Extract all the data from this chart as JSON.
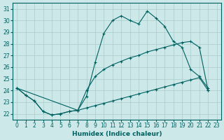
{
  "xlabel": "Humidex (Indice chaleur)",
  "bg_color": "#cce8e8",
  "line_color": "#006060",
  "grid_color": "#aacccc",
  "xlim": [
    -0.5,
    23.5
  ],
  "ylim": [
    21.5,
    31.5
  ],
  "yticks": [
    22,
    23,
    24,
    25,
    26,
    27,
    28,
    29,
    30,
    31
  ],
  "xticks": [
    0,
    1,
    2,
    3,
    4,
    5,
    6,
    7,
    8,
    9,
    10,
    11,
    12,
    13,
    14,
    15,
    16,
    17,
    18,
    19,
    20,
    21,
    22,
    23
  ],
  "curve_top_x": [
    0,
    1,
    2,
    3,
    4,
    5,
    6,
    7,
    8,
    9,
    10,
    11,
    12,
    13,
    14,
    15,
    16,
    17,
    18,
    19,
    20,
    21,
    22
  ],
  "curve_top_y": [
    24.2,
    23.6,
    23.1,
    22.2,
    21.9,
    22.0,
    22.2,
    22.3,
    23.5,
    26.4,
    28.9,
    30.0,
    30.4,
    30.0,
    29.7,
    30.8,
    30.2,
    29.5,
    28.2,
    27.7,
    25.8,
    25.2,
    24.2
  ],
  "curve_mid_x": [
    0,
    7,
    8,
    9,
    10,
    11,
    12,
    13,
    14,
    15,
    16,
    17,
    18,
    19,
    20,
    21,
    22
  ],
  "curve_mid_y": [
    24.2,
    22.3,
    24.0,
    25.2,
    25.8,
    26.2,
    26.5,
    26.8,
    27.0,
    27.3,
    27.5,
    27.7,
    27.9,
    28.1,
    28.2,
    27.7,
    24.0
  ],
  "curve_bot_x": [
    0,
    1,
    2,
    3,
    4,
    5,
    6,
    7,
    8,
    9,
    10,
    11,
    12,
    13,
    14,
    15,
    16,
    17,
    18,
    19,
    20,
    21,
    22
  ],
  "curve_bot_y": [
    24.2,
    23.6,
    23.1,
    22.2,
    21.9,
    22.0,
    22.2,
    22.3,
    22.5,
    22.7,
    22.9,
    23.1,
    23.3,
    23.5,
    23.7,
    23.9,
    24.1,
    24.3,
    24.5,
    24.7,
    24.9,
    25.1,
    24.0
  ]
}
